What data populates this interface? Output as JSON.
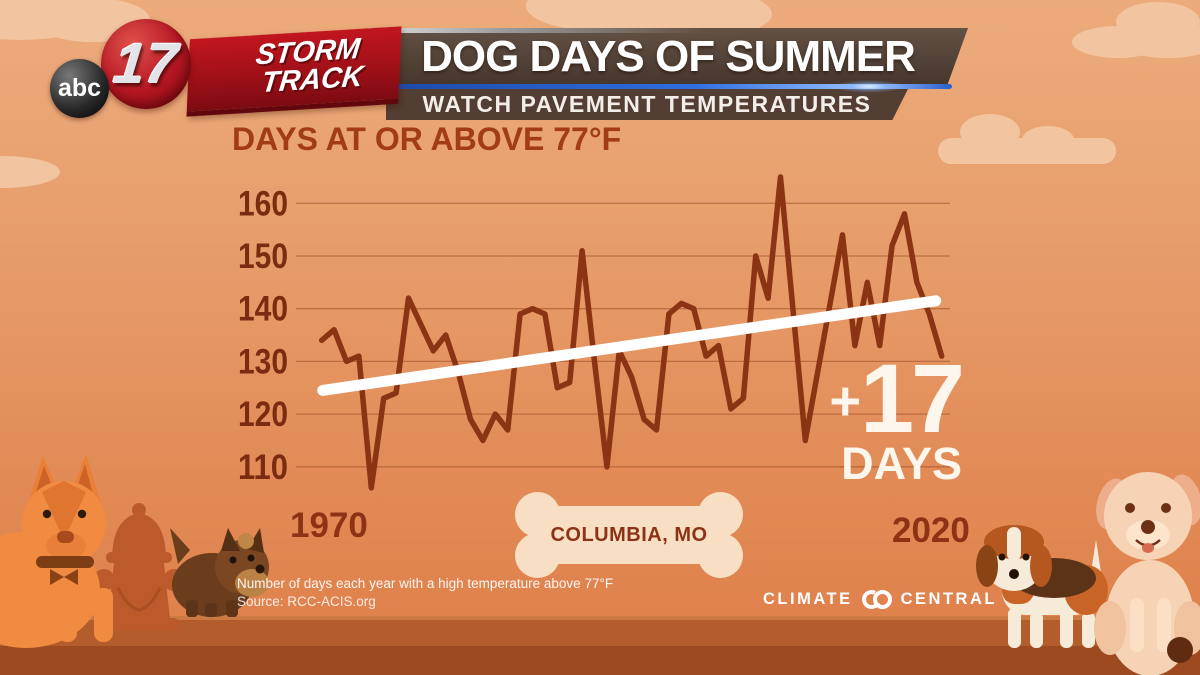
{
  "header": {
    "station": {
      "abc": "abc",
      "channel": "17",
      "brand_line1": "STORM",
      "brand_line2": "TRACK"
    },
    "title": "DOG DAYS OF SUMMER",
    "subtitle": "WATCH PAVEMENT TEMPERATURES"
  },
  "chart": {
    "heading": "DAYS AT OR ABOVE 77°F",
    "x_start_label": "1970",
    "x_end_label": "2020",
    "location_tag": "COLUMBIA, MO",
    "trend_callout": {
      "plus": "+",
      "value": "17",
      "unit": "DAYS"
    }
  },
  "chart_data": {
    "type": "line",
    "title": "DAYS AT OR ABOVE 77°F",
    "x": [
      1970,
      1971,
      1972,
      1973,
      1974,
      1975,
      1976,
      1977,
      1978,
      1979,
      1980,
      1981,
      1982,
      1983,
      1984,
      1985,
      1986,
      1987,
      1988,
      1989,
      1990,
      1991,
      1992,
      1993,
      1994,
      1995,
      1996,
      1997,
      1998,
      1999,
      2000,
      2001,
      2002,
      2003,
      2004,
      2005,
      2006,
      2007,
      2008,
      2009,
      2010,
      2011,
      2012,
      2013,
      2014,
      2015,
      2016,
      2017,
      2018,
      2019,
      2020
    ],
    "values": [
      134,
      136,
      130,
      131,
      106,
      123,
      124,
      142,
      137,
      132,
      135,
      128,
      119,
      115,
      120,
      117,
      139,
      140,
      139,
      125,
      126,
      151,
      130,
      110,
      132,
      127,
      119,
      117,
      139,
      141,
      140,
      131,
      133,
      121,
      123,
      150,
      142,
      165,
      140,
      115,
      128,
      141,
      154,
      133,
      145,
      133,
      152,
      158,
      145,
      139,
      131
    ],
    "yticks": [
      160,
      150,
      140,
      130,
      120,
      110
    ],
    "ylim": [
      100,
      170
    ],
    "grid": true,
    "legend": "none",
    "trend": {
      "start_value": 124.5,
      "end_value": 141.5,
      "change_label": "+17",
      "unit": "DAYS"
    },
    "line_color": "#8b3413",
    "trend_color": "#ffffff",
    "tick_color": "#7b2c10"
  },
  "footer": {
    "note": "Number of days each year with a high temperature above 77°F",
    "source": "Source: RCC-ACIS.org",
    "brand_word_left": "CLIMATE",
    "brand_word_right": "CENTRAL"
  },
  "colors": {
    "background_top": "#ecab7c",
    "background_bottom": "#de7e48",
    "ground": "#9d4a20",
    "banner_red": "#a01018",
    "title_bar": "#4c3e36",
    "accent_blue": "#2f6fe0",
    "text_brown": "#8c3315",
    "bone_fill": "#f8dfc4",
    "callout_white": "#fdf6ec"
  }
}
